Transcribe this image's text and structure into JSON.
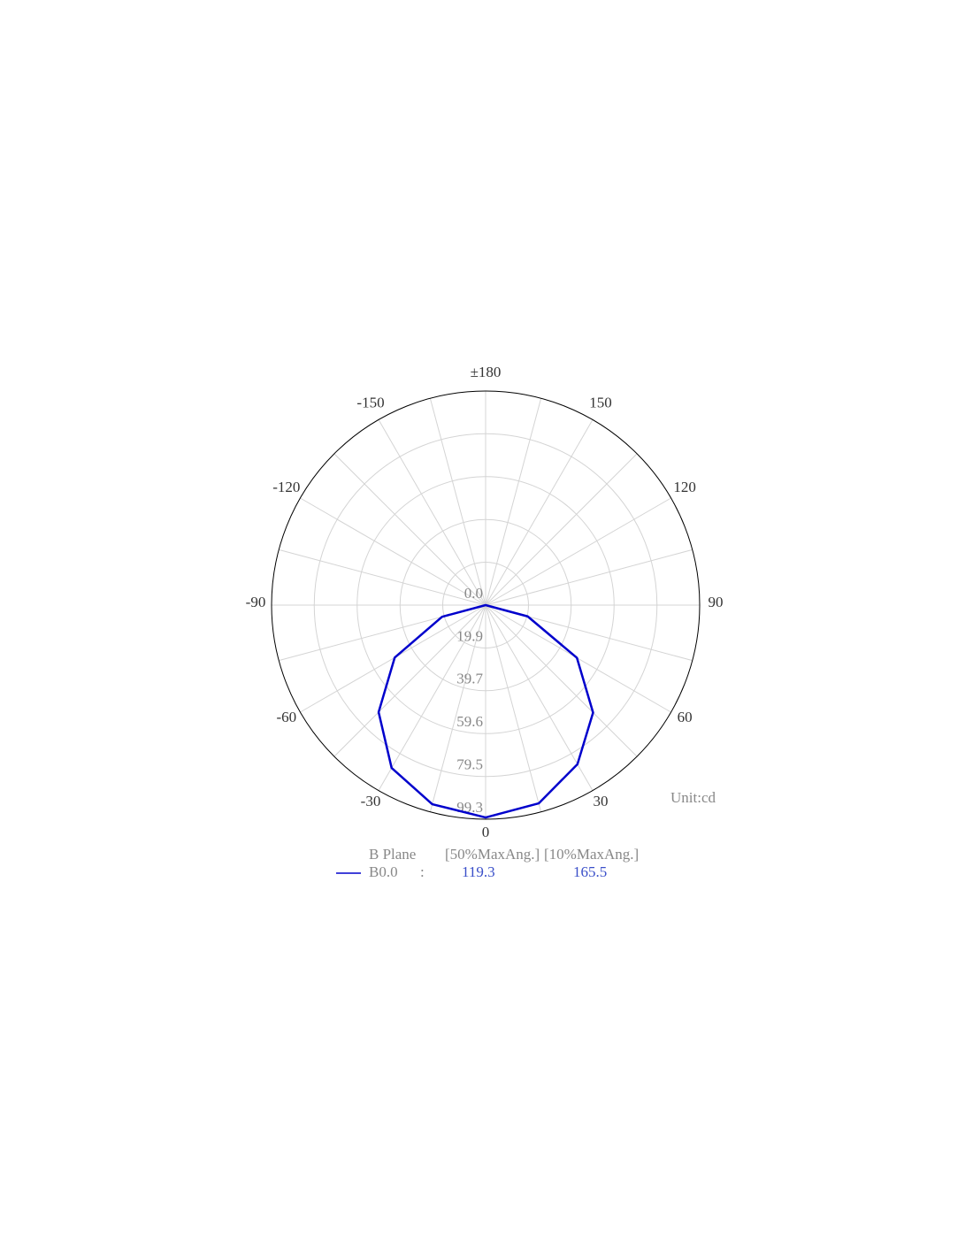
{
  "chart_data": {
    "type": "polar",
    "angles": [
      -180,
      -165,
      -150,
      -135,
      -120,
      -105,
      -90,
      -75,
      -60,
      -45,
      -30,
      -15,
      0,
      15,
      30,
      45,
      60,
      75,
      90,
      105,
      120,
      135,
      150,
      165
    ],
    "series": [
      {
        "name": "B0.0",
        "color": "#0000cc",
        "values": [
          0,
          0,
          0,
          0,
          0,
          0,
          0,
          20.9,
          48.7,
          70.2,
          87.2,
          95.6,
          98.5,
          95.2,
          85.2,
          70.5,
          48.9,
          20.2,
          0,
          0,
          0,
          0,
          0,
          0
        ]
      }
    ],
    "rlim": [
      0,
      99.3
    ],
    "rticks": [
      {
        "value": 0,
        "label": "0.0"
      },
      19.9,
      39.7,
      59.6,
      79.5,
      99.3
    ],
    "thetaticks": [
      {
        "value": 180,
        "label": "±180"
      },
      150,
      120,
      90,
      60,
      30,
      0,
      -30,
      -60,
      -90,
      -120,
      -150
    ],
    "grid": true,
    "annotation": "Unit:cd",
    "legend": {
      "header": [
        "B Plane",
        "[50%MaxAng.]",
        "[10%MaxAng.]"
      ],
      "separator": ":",
      "values": [
        119.3,
        165.5
      ]
    }
  }
}
